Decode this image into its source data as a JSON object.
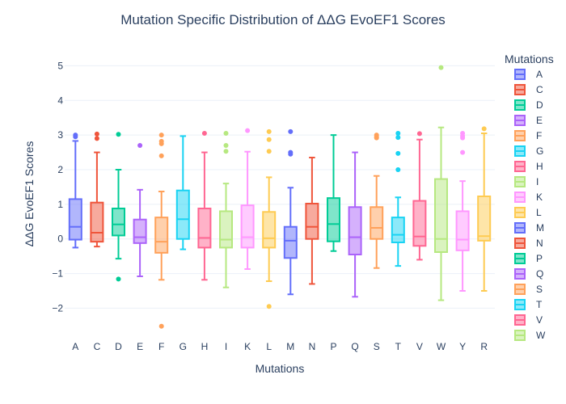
{
  "chart_data": {
    "type": "box",
    "title": "Mutation Specific Distribution of ΔΔG EvoEF1 Scores",
    "xlabel": "Mutations",
    "ylabel": "ΔΔG EvoEF1 Scores",
    "ylim": [
      -2.9,
      5.5
    ],
    "yticks": [
      {
        "value": 5,
        "label": "5"
      },
      {
        "value": 4,
        "label": "4"
      },
      {
        "value": 3,
        "label": "3"
      },
      {
        "value": 2,
        "label": "2"
      },
      {
        "value": 1,
        "label": "1"
      },
      {
        "value": 0,
        "label": "0"
      },
      {
        "value": -1,
        "label": "−1"
      },
      {
        "value": -2,
        "label": "−2"
      }
    ],
    "grid": true,
    "legend_title": "Mutations",
    "legend_position": "right",
    "series": [
      {
        "name": "A",
        "color": "#636efa",
        "stats": {
          "min": -0.25,
          "q1": -0.02,
          "median": 0.35,
          "q3": 1.15,
          "max": 2.83
        },
        "outliers": [
          2.95,
          3.0
        ]
      },
      {
        "name": "C",
        "color": "#ef553b",
        "stats": {
          "min": -0.22,
          "q1": -0.08,
          "median": 0.18,
          "q3": 1.05,
          "max": 2.5
        },
        "outliers": [
          2.9,
          3.03
        ]
      },
      {
        "name": "D",
        "color": "#00cc96",
        "stats": {
          "min": -0.57,
          "q1": 0.1,
          "median": 0.42,
          "q3": 0.88,
          "max": 2.0
        },
        "outliers": [
          3.02,
          -1.16
        ]
      },
      {
        "name": "E",
        "color": "#ab63fa",
        "stats": {
          "min": -1.08,
          "q1": -0.12,
          "median": 0.05,
          "q3": 0.56,
          "max": 1.42
        },
        "outliers": [
          2.7
        ]
      },
      {
        "name": "F",
        "color": "#ffa15a",
        "stats": {
          "min": -1.18,
          "q1": -0.4,
          "median": -0.08,
          "q3": 0.62,
          "max": 1.37
        },
        "outliers": [
          3.0,
          2.82,
          2.75,
          2.4,
          -2.52
        ]
      },
      {
        "name": "G",
        "color": "#19d3f3",
        "stats": {
          "min": -0.3,
          "q1": 0.0,
          "median": 0.57,
          "q3": 1.4,
          "max": 2.97
        },
        "outliers": []
      },
      {
        "name": "H",
        "color": "#ff6692",
        "stats": {
          "min": -1.18,
          "q1": -0.25,
          "median": 0.03,
          "q3": 0.88,
          "max": 2.5
        },
        "outliers": [
          3.05
        ]
      },
      {
        "name": "I",
        "color": "#b6e880",
        "stats": {
          "min": -1.4,
          "q1": -0.25,
          "median": -0.02,
          "q3": 0.8,
          "max": 1.6
        },
        "outliers": [
          3.05,
          2.7,
          2.53
        ]
      },
      {
        "name": "K",
        "color": "#ff97ff",
        "stats": {
          "min": -0.87,
          "q1": -0.25,
          "median": 0.05,
          "q3": 0.97,
          "max": 2.52
        },
        "outliers": [
          3.13
        ]
      },
      {
        "name": "L",
        "color": "#fecb52",
        "stats": {
          "min": -1.22,
          "q1": -0.25,
          "median": 0.02,
          "q3": 0.78,
          "max": 1.78
        },
        "outliers": [
          3.1,
          2.87,
          2.53,
          -1.95
        ]
      },
      {
        "name": "M",
        "color": "#636efa",
        "stats": {
          "min": -1.6,
          "q1": -0.55,
          "median": -0.05,
          "q3": 0.35,
          "max": 1.48
        },
        "outliers": [
          3.1,
          2.5,
          2.45
        ]
      },
      {
        "name": "N",
        "color": "#ef553b",
        "stats": {
          "min": -1.3,
          "q1": 0.0,
          "median": 0.35,
          "q3": 1.02,
          "max": 2.35
        },
        "outliers": []
      },
      {
        "name": "P",
        "color": "#00cc96",
        "stats": {
          "min": -0.35,
          "q1": -0.07,
          "median": 0.43,
          "q3": 1.18,
          "max": 3.0
        },
        "outliers": []
      },
      {
        "name": "Q",
        "color": "#ab63fa",
        "stats": {
          "min": -1.67,
          "q1": -0.45,
          "median": 0.05,
          "q3": 0.92,
          "max": 2.5
        },
        "outliers": []
      },
      {
        "name": "S",
        "color": "#ffa15a",
        "stats": {
          "min": -0.84,
          "q1": 0.0,
          "median": 0.32,
          "q3": 0.92,
          "max": 1.82
        },
        "outliers": [
          3.0,
          2.95,
          2.92
        ]
      },
      {
        "name": "T",
        "color": "#19d3f3",
        "stats": {
          "min": -0.78,
          "q1": -0.1,
          "median": 0.12,
          "q3": 0.62,
          "max": 1.2
        },
        "outliers": [
          3.05,
          2.93,
          2.47,
          2.0
        ]
      },
      {
        "name": "V",
        "color": "#ff6692",
        "stats": {
          "min": -0.6,
          "q1": -0.2,
          "median": 0.07,
          "q3": 1.1,
          "max": 2.87
        },
        "outliers": [
          3.04
        ]
      },
      {
        "name": "W",
        "color": "#b6e880",
        "stats": {
          "min": -1.77,
          "q1": -0.38,
          "median": 0.0,
          "q3": 1.73,
          "max": 3.22
        },
        "outliers": [
          4.95
        ]
      },
      {
        "name": "Y",
        "color": "#ff97ff",
        "stats": {
          "min": -1.5,
          "q1": -0.33,
          "median": -0.02,
          "q3": 0.8,
          "max": 1.67
        },
        "outliers": [
          3.05,
          2.97,
          2.92,
          2.5
        ]
      },
      {
        "name": "R",
        "color": "#fecb52",
        "stats": {
          "min": -1.5,
          "q1": -0.05,
          "median": 0.08,
          "q3": 1.23,
          "max": 3.05
        },
        "outliers": [
          3.18
        ]
      }
    ]
  }
}
